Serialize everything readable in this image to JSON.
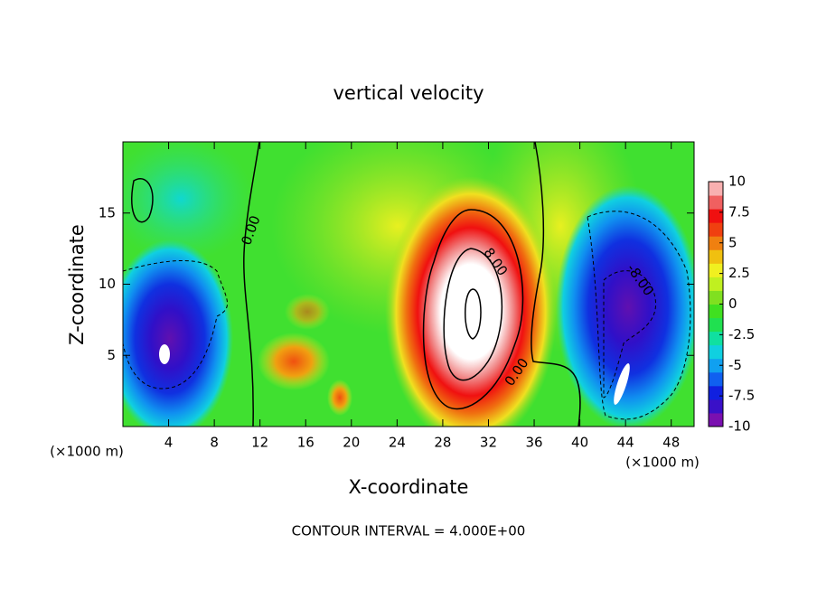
{
  "chart_data": {
    "type": "contour",
    "title": "vertical velocity",
    "xlabel": "X-coordinate",
    "ylabel": "Z-coordinate",
    "x_unit": "(×1000 m)",
    "footer": "CONTOUR INTERVAL = 4.000E+00",
    "xlim": [
      0,
      50
    ],
    "xticks": [
      4,
      8,
      12,
      16,
      20,
      24,
      28,
      32,
      36,
      40,
      44,
      48
    ],
    "ylim": [
      0,
      20
    ],
    "yticks": [
      5,
      10,
      15
    ],
    "contour_labels": [
      "0.00",
      "0.00",
      "8.00",
      "-8.00"
    ],
    "colorbar": {
      "lim": [
        -10,
        10
      ],
      "ticks": [
        10,
        7.5,
        5,
        2.5,
        0,
        -2.5,
        -5,
        -7.5,
        -10
      ],
      "colors": [
        "#7a10b0",
        "#3a10c8",
        "#1020e0",
        "#1060f0",
        "#10a0f0",
        "#10d0e0",
        "#10e0a0",
        "#20e050",
        "#40e020",
        "#80e020",
        "#c0f020",
        "#f0f020",
        "#f0c010",
        "#f08010",
        "#f04010",
        "#f01010",
        "#f06060",
        "#f8b0b0"
      ]
    }
  }
}
